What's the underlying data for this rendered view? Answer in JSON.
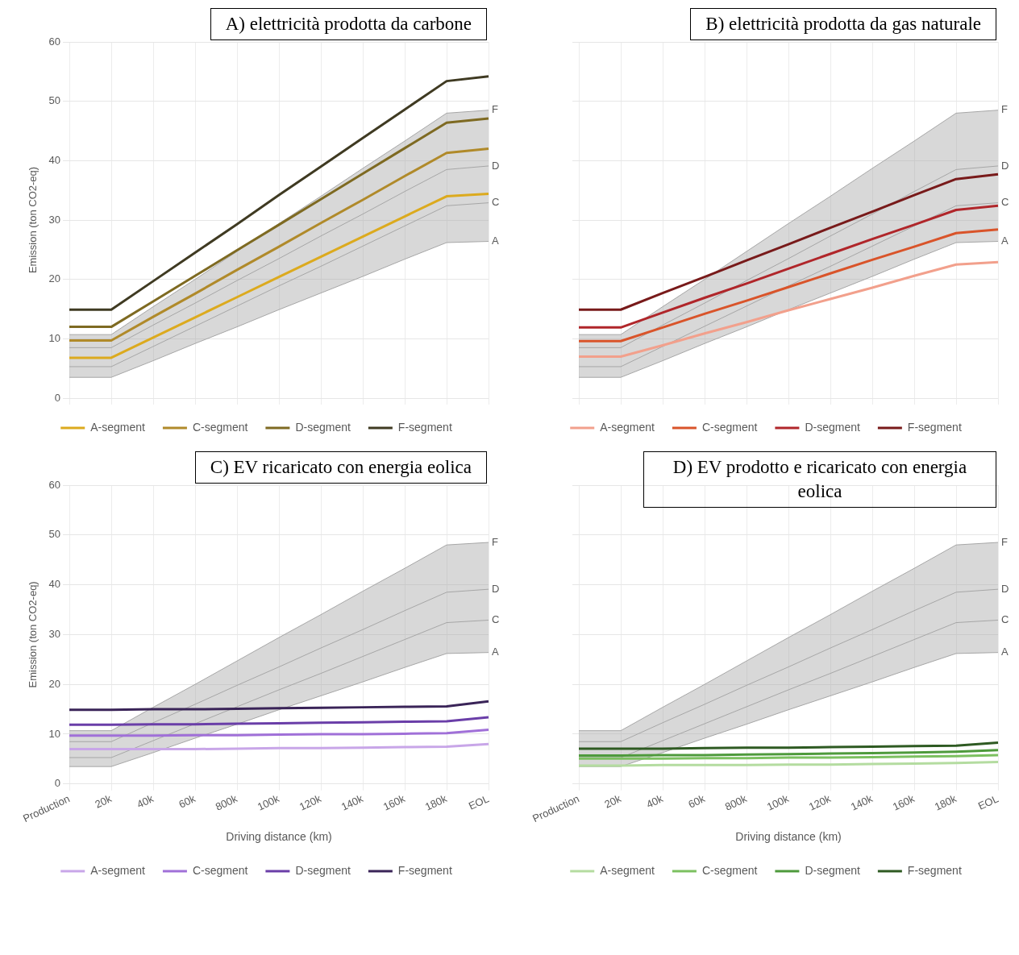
{
  "chart_data": [
    {
      "type": "line",
      "title": "A) elettricità prodotta da carbone",
      "ylabel": "Emission (ton CO2-eq)",
      "categories": [
        "Production",
        "20k",
        "40k",
        "60k",
        "800k",
        "100k",
        "120k",
        "140k",
        "160k",
        "180k",
        "EOL"
      ],
      "ylim": [
        0,
        60
      ],
      "yticks": [
        0,
        10,
        20,
        30,
        40,
        50,
        60
      ],
      "grid": true,
      "legend": "bottom",
      "tick_labels": "y",
      "series": [
        {
          "color": "#a6a6a6",
          "values": [
            5.3,
            5.3,
            8.7,
            12.1,
            15.5,
            18.9,
            22.2,
            25.6,
            29.0,
            32.4,
            32.9
          ],
          "lower": [
            3.5,
            3.5,
            6.3,
            9.2,
            12.0,
            14.9,
            17.7,
            20.5,
            23.4,
            26.2,
            26.4
          ],
          "upper": [
            10.7,
            10.7,
            15.4,
            20.0,
            24.7,
            29.4,
            34.0,
            38.7,
            43.3,
            48.0,
            48.5
          ]
        },
        {
          "color": "#a6a6a6",
          "values": [
            8.5,
            8.5,
            12.3,
            16.0,
            19.8,
            23.5,
            27.3,
            31.0,
            34.8,
            38.5,
            39.1
          ]
        },
        {
          "color": "#a6a6a6",
          "values": [
            3.5,
            3.5,
            6.3,
            9.2,
            12.0,
            14.9,
            17.7,
            20.5,
            23.4,
            26.2,
            26.4
          ]
        },
        {
          "color": "#a6a6a6",
          "values": [
            10.7,
            10.7,
            15.4,
            20.0,
            24.7,
            29.4,
            34.0,
            38.7,
            43.3,
            48.0,
            48.5
          ]
        },
        {
          "name": "A-segment",
          "color": "#dcaa1e",
          "values": [
            6.8,
            6.8,
            10.2,
            13.6,
            17.0,
            20.4,
            23.8,
            27.2,
            30.6,
            34.0,
            34.4
          ]
        },
        {
          "name": "C-segment",
          "color": "#b08a2a",
          "values": [
            9.7,
            9.7,
            13.7,
            17.6,
            21.6,
            25.5,
            29.5,
            33.4,
            37.4,
            41.3,
            42.0
          ]
        },
        {
          "name": "D-segment",
          "color": "#7e6a22",
          "values": [
            12.0,
            12.0,
            16.3,
            20.6,
            24.9,
            29.2,
            33.5,
            37.8,
            42.1,
            46.4,
            47.1
          ]
        },
        {
          "name": "F-segment",
          "color": "#3f3a22",
          "values": [
            14.9,
            14.9,
            19.7,
            24.5,
            29.3,
            34.2,
            39.0,
            43.8,
            48.6,
            53.4,
            54.2
          ]
        }
      ],
      "annotations": [
        {
          "text": "F",
          "x": "EOL",
          "y": 48.5
        },
        {
          "text": "D",
          "x": "EOL",
          "y": 39.1
        },
        {
          "text": "C",
          "x": "EOL",
          "y": 32.9
        },
        {
          "text": "A",
          "x": "EOL",
          "y": 26.4
        }
      ]
    },
    {
      "type": "line",
      "title": "B) elettricità prodotta da gas naturale",
      "categories": [
        "Production",
        "20k",
        "40k",
        "60k",
        "800k",
        "100k",
        "120k",
        "140k",
        "160k",
        "180k",
        "EOL"
      ],
      "ylim": [
        0,
        60
      ],
      "yticks": [
        0,
        10,
        20,
        30,
        40,
        50,
        60
      ],
      "grid": true,
      "legend": "bottom",
      "tick_labels": false,
      "series": [
        {
          "color": "#a6a6a6",
          "values": [
            5.3,
            5.3,
            8.7,
            12.1,
            15.5,
            18.9,
            22.2,
            25.6,
            29.0,
            32.4,
            32.9
          ],
          "lower": [
            3.5,
            3.5,
            6.3,
            9.2,
            12.0,
            14.9,
            17.7,
            20.5,
            23.4,
            26.2,
            26.4
          ],
          "upper": [
            10.7,
            10.7,
            15.4,
            20.0,
            24.7,
            29.4,
            34.0,
            38.7,
            43.3,
            48.0,
            48.5
          ]
        },
        {
          "color": "#a6a6a6",
          "values": [
            8.5,
            8.5,
            12.3,
            16.0,
            19.8,
            23.5,
            27.3,
            31.0,
            34.8,
            38.5,
            39.1
          ]
        },
        {
          "color": "#a6a6a6",
          "values": [
            3.5,
            3.5,
            6.3,
            9.2,
            12.0,
            14.9,
            17.7,
            20.5,
            23.4,
            26.2,
            26.4
          ]
        },
        {
          "color": "#a6a6a6",
          "values": [
            10.7,
            10.7,
            15.4,
            20.0,
            24.7,
            29.4,
            34.0,
            38.7,
            43.3,
            48.0,
            48.5
          ]
        },
        {
          "name": "A-segment",
          "color": "#f2a08c",
          "values": [
            7.0,
            7.0,
            8.9,
            10.9,
            12.8,
            14.8,
            16.7,
            18.6,
            20.6,
            22.5,
            22.9
          ]
        },
        {
          "name": "C-segment",
          "color": "#d9542a",
          "values": [
            9.6,
            9.6,
            11.9,
            14.2,
            16.4,
            18.7,
            21.0,
            23.3,
            25.5,
            27.8,
            28.4
          ]
        },
        {
          "name": "D-segment",
          "color": "#b0262a",
          "values": [
            11.9,
            11.9,
            14.4,
            16.9,
            19.3,
            21.8,
            24.3,
            26.8,
            29.2,
            31.7,
            32.4
          ]
        },
        {
          "name": "F-segment",
          "color": "#781a1a",
          "values": [
            14.9,
            14.9,
            17.7,
            20.4,
            23.2,
            25.9,
            28.7,
            31.4,
            34.2,
            36.9,
            37.7
          ]
        }
      ],
      "annotations": [
        {
          "text": "F",
          "x": "EOL",
          "y": 48.5
        },
        {
          "text": "D",
          "x": "EOL",
          "y": 39.1
        },
        {
          "text": "C",
          "x": "EOL",
          "y": 32.9
        },
        {
          "text": "A",
          "x": "EOL",
          "y": 26.4
        }
      ]
    },
    {
      "type": "line",
      "title": "C) EV ricaricato con energia eolica",
      "xlabel": "Driving distance (km)",
      "ylabel": "Emission (ton CO2-eq)",
      "categories": [
        "Production",
        "20k",
        "40k",
        "60k",
        "800k",
        "100k",
        "120k",
        "140k",
        "160k",
        "180k",
        "EOL"
      ],
      "ylim": [
        0,
        60
      ],
      "yticks": [
        0,
        10,
        20,
        30,
        40,
        50,
        60
      ],
      "grid": true,
      "legend": "bottom",
      "series": [
        {
          "color": "#a6a6a6",
          "values": [
            5.3,
            5.3,
            8.7,
            12.1,
            15.5,
            18.9,
            22.2,
            25.6,
            29.0,
            32.4,
            32.9
          ],
          "lower": [
            3.5,
            3.5,
            6.3,
            9.2,
            12.0,
            14.9,
            17.7,
            20.5,
            23.4,
            26.2,
            26.4
          ],
          "upper": [
            10.7,
            10.7,
            15.4,
            20.0,
            24.7,
            29.4,
            34.0,
            38.7,
            43.3,
            48.0,
            48.5
          ]
        },
        {
          "color": "#a6a6a6",
          "values": [
            8.5,
            8.5,
            12.3,
            16.0,
            19.8,
            23.5,
            27.3,
            31.0,
            34.8,
            38.5,
            39.1
          ]
        },
        {
          "color": "#a6a6a6",
          "values": [
            3.5,
            3.5,
            6.3,
            9.2,
            12.0,
            14.9,
            17.7,
            20.5,
            23.4,
            26.2,
            26.4
          ]
        },
        {
          "color": "#a6a6a6",
          "values": [
            10.7,
            10.7,
            15.4,
            20.0,
            24.7,
            29.4,
            34.0,
            38.7,
            43.3,
            48.0,
            48.5
          ]
        },
        {
          "name": "A-segment",
          "color": "#c8a6e8",
          "values": [
            7.0,
            7.0,
            7.0,
            7.0,
            7.1,
            7.2,
            7.2,
            7.3,
            7.4,
            7.5,
            8.0
          ]
        },
        {
          "name": "C-segment",
          "color": "#a070d8",
          "values": [
            9.7,
            9.7,
            9.7,
            9.8,
            9.8,
            9.9,
            10.0,
            10.0,
            10.1,
            10.2,
            10.9
          ]
        },
        {
          "name": "D-segment",
          "color": "#6a3ea8",
          "values": [
            11.9,
            11.9,
            12.0,
            12.0,
            12.1,
            12.2,
            12.3,
            12.4,
            12.5,
            12.6,
            13.4
          ]
        },
        {
          "name": "F-segment",
          "color": "#3a2458",
          "values": [
            14.9,
            14.9,
            15.0,
            15.0,
            15.1,
            15.2,
            15.3,
            15.4,
            15.5,
            15.6,
            16.6
          ]
        }
      ],
      "annotations": [
        {
          "text": "F",
          "x": "EOL",
          "y": 48.5
        },
        {
          "text": "D",
          "x": "EOL",
          "y": 39.1
        },
        {
          "text": "C",
          "x": "EOL",
          "y": 32.9
        },
        {
          "text": "A",
          "x": "EOL",
          "y": 26.4
        }
      ]
    },
    {
      "type": "line",
      "title": "D) EV prodotto e ricaricato con energia eolica",
      "xlabel": "Driving distance (km)",
      "categories": [
        "Production",
        "20k",
        "40k",
        "60k",
        "800k",
        "100k",
        "120k",
        "140k",
        "160k",
        "180k",
        "EOL"
      ],
      "ylim": [
        0,
        60
      ],
      "yticks": [
        0,
        10,
        20,
        30,
        40,
        50,
        60
      ],
      "grid": true,
      "legend": "bottom",
      "tick_labels": "x",
      "series": [
        {
          "color": "#a6a6a6",
          "values": [
            5.3,
            5.3,
            8.7,
            12.1,
            15.5,
            18.9,
            22.2,
            25.6,
            29.0,
            32.4,
            32.9
          ],
          "lower": [
            3.5,
            3.5,
            6.3,
            9.2,
            12.0,
            14.9,
            17.7,
            20.5,
            23.4,
            26.2,
            26.4
          ],
          "upper": [
            10.7,
            10.7,
            15.4,
            20.0,
            24.7,
            29.4,
            34.0,
            38.7,
            43.3,
            48.0,
            48.5
          ]
        },
        {
          "color": "#a6a6a6",
          "values": [
            8.5,
            8.5,
            12.3,
            16.0,
            19.8,
            23.5,
            27.3,
            31.0,
            34.8,
            38.5,
            39.1
          ]
        },
        {
          "color": "#a6a6a6",
          "values": [
            3.5,
            3.5,
            6.3,
            9.2,
            12.0,
            14.9,
            17.7,
            20.5,
            23.4,
            26.2,
            26.4
          ]
        },
        {
          "color": "#a6a6a6",
          "values": [
            10.7,
            10.7,
            15.4,
            20.0,
            24.7,
            29.4,
            34.0,
            38.7,
            43.3,
            48.0,
            48.5
          ]
        },
        {
          "name": "A-segment",
          "color": "#b4dca0",
          "values": [
            3.7,
            3.7,
            3.8,
            3.8,
            3.8,
            3.9,
            3.9,
            4.0,
            4.1,
            4.2,
            4.4
          ]
        },
        {
          "name": "C-segment",
          "color": "#7cc060",
          "values": [
            5.1,
            5.1,
            5.1,
            5.2,
            5.2,
            5.3,
            5.3,
            5.4,
            5.5,
            5.6,
            5.8
          ]
        },
        {
          "name": "D-segment",
          "color": "#4e9a3c",
          "values": [
            5.7,
            5.7,
            5.8,
            5.8,
            5.9,
            6.0,
            6.1,
            6.2,
            6.3,
            6.5,
            6.8
          ]
        },
        {
          "name": "F-segment",
          "color": "#2e5a22",
          "values": [
            7.1,
            7.1,
            7.1,
            7.2,
            7.3,
            7.3,
            7.4,
            7.5,
            7.6,
            7.7,
            8.3
          ]
        }
      ],
      "annotations": [
        {
          "text": "F",
          "x": "EOL",
          "y": 48.5
        },
        {
          "text": "D",
          "x": "EOL",
          "y": 39.1
        },
        {
          "text": "C",
          "x": "EOL",
          "y": 32.9
        },
        {
          "text": "A",
          "x": "EOL",
          "y": 26.4
        }
      ]
    }
  ]
}
